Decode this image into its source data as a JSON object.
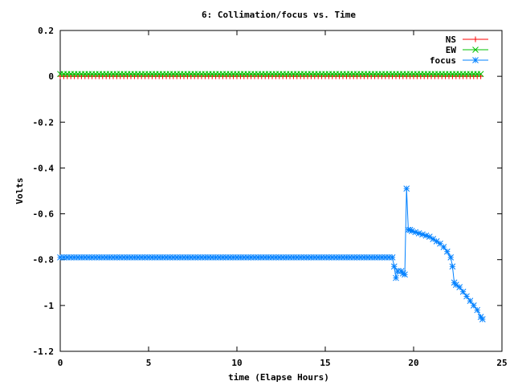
{
  "chart_data": {
    "type": "line",
    "title": "6: Collimation/focus vs. Time",
    "xlabel": "time (Elapse Hours)",
    "ylabel": "Volts",
    "xlim": [
      0,
      25
    ],
    "ylim": [
      -1.2,
      0.2
    ],
    "x_ticks": [
      "0",
      "5",
      "10",
      "15",
      "20",
      "25"
    ],
    "y_ticks": [
      "0.2",
      "0",
      "-0.2",
      "-0.4",
      "-0.6",
      "-0.8",
      "-1",
      "-1.2"
    ],
    "grid": false,
    "legend_position": "top-right",
    "series": [
      {
        "name": "NS",
        "color": "#ff0000",
        "marker": "plus",
        "x_start": 0,
        "x_end": 23.8,
        "x_step": 0.2,
        "value": 0.0
      },
      {
        "name": "EW",
        "color": "#00c000",
        "marker": "cross",
        "x_start": 0,
        "x_end": 23.8,
        "x_step": 0.2,
        "value": 0.01
      },
      {
        "name": "focus",
        "color": "#0080ff",
        "marker": "star",
        "x_start": 0,
        "x_end": 18.6,
        "x_step": 0.2,
        "value": -0.79,
        "points": [
          [
            18.8,
            -0.79
          ],
          [
            18.9,
            -0.83
          ],
          [
            19.0,
            -0.88
          ],
          [
            19.1,
            -0.85
          ],
          [
            19.3,
            -0.85
          ],
          [
            19.4,
            -0.86
          ],
          [
            19.5,
            -0.865
          ],
          [
            19.6,
            -0.49
          ],
          [
            19.7,
            -0.67
          ],
          [
            19.8,
            -0.67
          ],
          [
            19.9,
            -0.675
          ],
          [
            20.1,
            -0.68
          ],
          [
            20.3,
            -0.685
          ],
          [
            20.5,
            -0.69
          ],
          [
            20.7,
            -0.695
          ],
          [
            20.9,
            -0.7
          ],
          [
            21.1,
            -0.71
          ],
          [
            21.3,
            -0.72
          ],
          [
            21.5,
            -0.73
          ],
          [
            21.7,
            -0.745
          ],
          [
            21.9,
            -0.765
          ],
          [
            22.1,
            -0.79
          ],
          [
            22.2,
            -0.83
          ],
          [
            22.3,
            -0.9
          ],
          [
            22.4,
            -0.91
          ],
          [
            22.6,
            -0.92
          ],
          [
            22.8,
            -0.94
          ],
          [
            23.0,
            -0.96
          ],
          [
            23.2,
            -0.98
          ],
          [
            23.4,
            -1.0
          ],
          [
            23.6,
            -1.02
          ],
          [
            23.8,
            -1.05
          ],
          [
            23.9,
            -1.06
          ]
        ]
      }
    ]
  }
}
